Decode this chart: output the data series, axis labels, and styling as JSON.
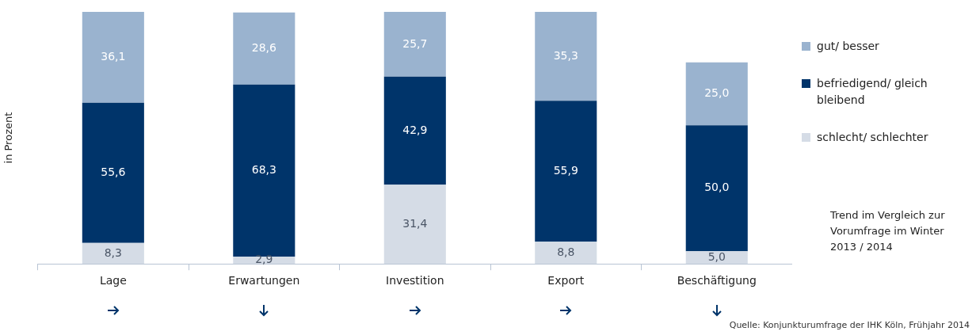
{
  "chart_data": {
    "type": "bar",
    "stacked": true,
    "ylabel": "in Prozent",
    "categories": [
      "Lage",
      "Erwartungen",
      "Investition",
      "Export",
      "Beschäftigung"
    ],
    "ylim": [
      0,
      100
    ],
    "tick_labels": "x",
    "grid": false,
    "legend": "right",
    "series": [
      {
        "name": "schlecht/ schlechter",
        "color": "#d5dce6",
        "values": [
          8.3,
          2.9,
          31.4,
          8.8,
          5.0
        ],
        "value_labels": [
          "8,3",
          "2,9",
          "31,4",
          "8,8",
          "5,0"
        ]
      },
      {
        "name": "befriedigend/ gleich bleibend",
        "color": "#00346a",
        "values": [
          55.6,
          68.3,
          42.9,
          55.9,
          50.0
        ],
        "value_labels": [
          "55,6",
          "68,3",
          "42,9",
          "55,9",
          "50,0"
        ]
      },
      {
        "name": "gut/ besser",
        "color": "#9ab3cf",
        "values": [
          36.1,
          28.6,
          25.7,
          35.3,
          25.0
        ],
        "value_labels": [
          "36,1",
          "28,6",
          "25,7",
          "35,3",
          "25,0"
        ]
      }
    ],
    "annotations": [
      "Trend im Vergleich zur Vorumfrage im Winter 2013 / 2014",
      "Quelle: Konjunkturumfrage der IHK Köln, Frühjahr 2014"
    ]
  }
}
